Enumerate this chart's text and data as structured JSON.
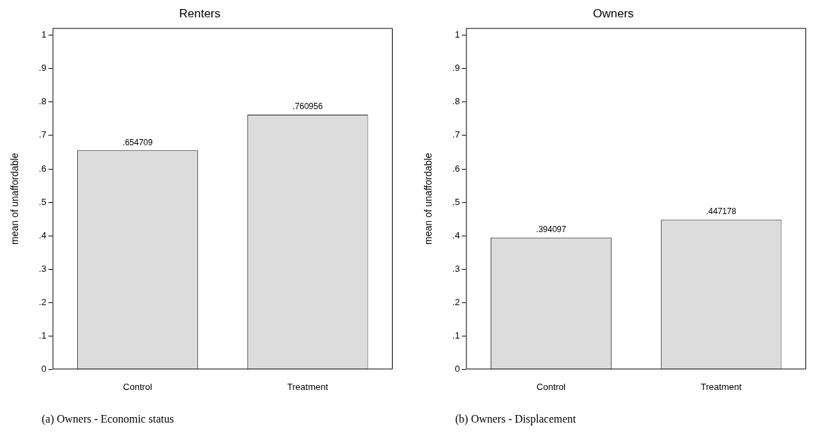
{
  "chart_data": [
    {
      "type": "bar",
      "title": "Renters",
      "ylabel": "mean of unaffordable",
      "categories": [
        "Control",
        "Treatment"
      ],
      "values": [
        0.654709,
        0.760956
      ],
      "value_labels": [
        ".654709",
        ".760956"
      ],
      "color": "#dcdcdc",
      "ylim": [
        0,
        1.02
      ],
      "yticks": [
        {
          "value": 0,
          "label": "0"
        },
        {
          "value": 0.1,
          "label": ".1"
        },
        {
          "value": 0.2,
          "label": ".2"
        },
        {
          "value": 0.3,
          "label": ".3"
        },
        {
          "value": 0.4,
          "label": ".4"
        },
        {
          "value": 0.5,
          "label": ".5"
        },
        {
          "value": 0.6,
          "label": ".6"
        },
        {
          "value": 0.7,
          "label": ".7"
        },
        {
          "value": 0.8,
          "label": ".8"
        },
        {
          "value": 0.9,
          "label": ".9"
        },
        {
          "value": 1,
          "label": "1"
        }
      ],
      "grid": false,
      "legend": false,
      "annotations": [
        "(a) Owners - Economic status"
      ]
    },
    {
      "type": "bar",
      "title": "Owners",
      "ylabel": "mean of unaffordable",
      "categories": [
        "Control",
        "Treatment"
      ],
      "values": [
        0.394097,
        0.447178
      ],
      "value_labels": [
        ".394097",
        ".447178"
      ],
      "color": "#dcdcdc",
      "ylim": [
        0,
        1.02
      ],
      "yticks": [
        {
          "value": 0,
          "label": "0"
        },
        {
          "value": 0.1,
          "label": ".1"
        },
        {
          "value": 0.2,
          "label": ".2"
        },
        {
          "value": 0.3,
          "label": ".3"
        },
        {
          "value": 0.4,
          "label": ".4"
        },
        {
          "value": 0.5,
          "label": ".5"
        },
        {
          "value": 0.6,
          "label": ".6"
        },
        {
          "value": 0.7,
          "label": ".7"
        },
        {
          "value": 0.8,
          "label": ".8"
        },
        {
          "value": 0.9,
          "label": ".9"
        },
        {
          "value": 1,
          "label": "1"
        }
      ],
      "grid": false,
      "legend": false,
      "annotations": [
        "(b) Owners - Displacement"
      ]
    }
  ]
}
